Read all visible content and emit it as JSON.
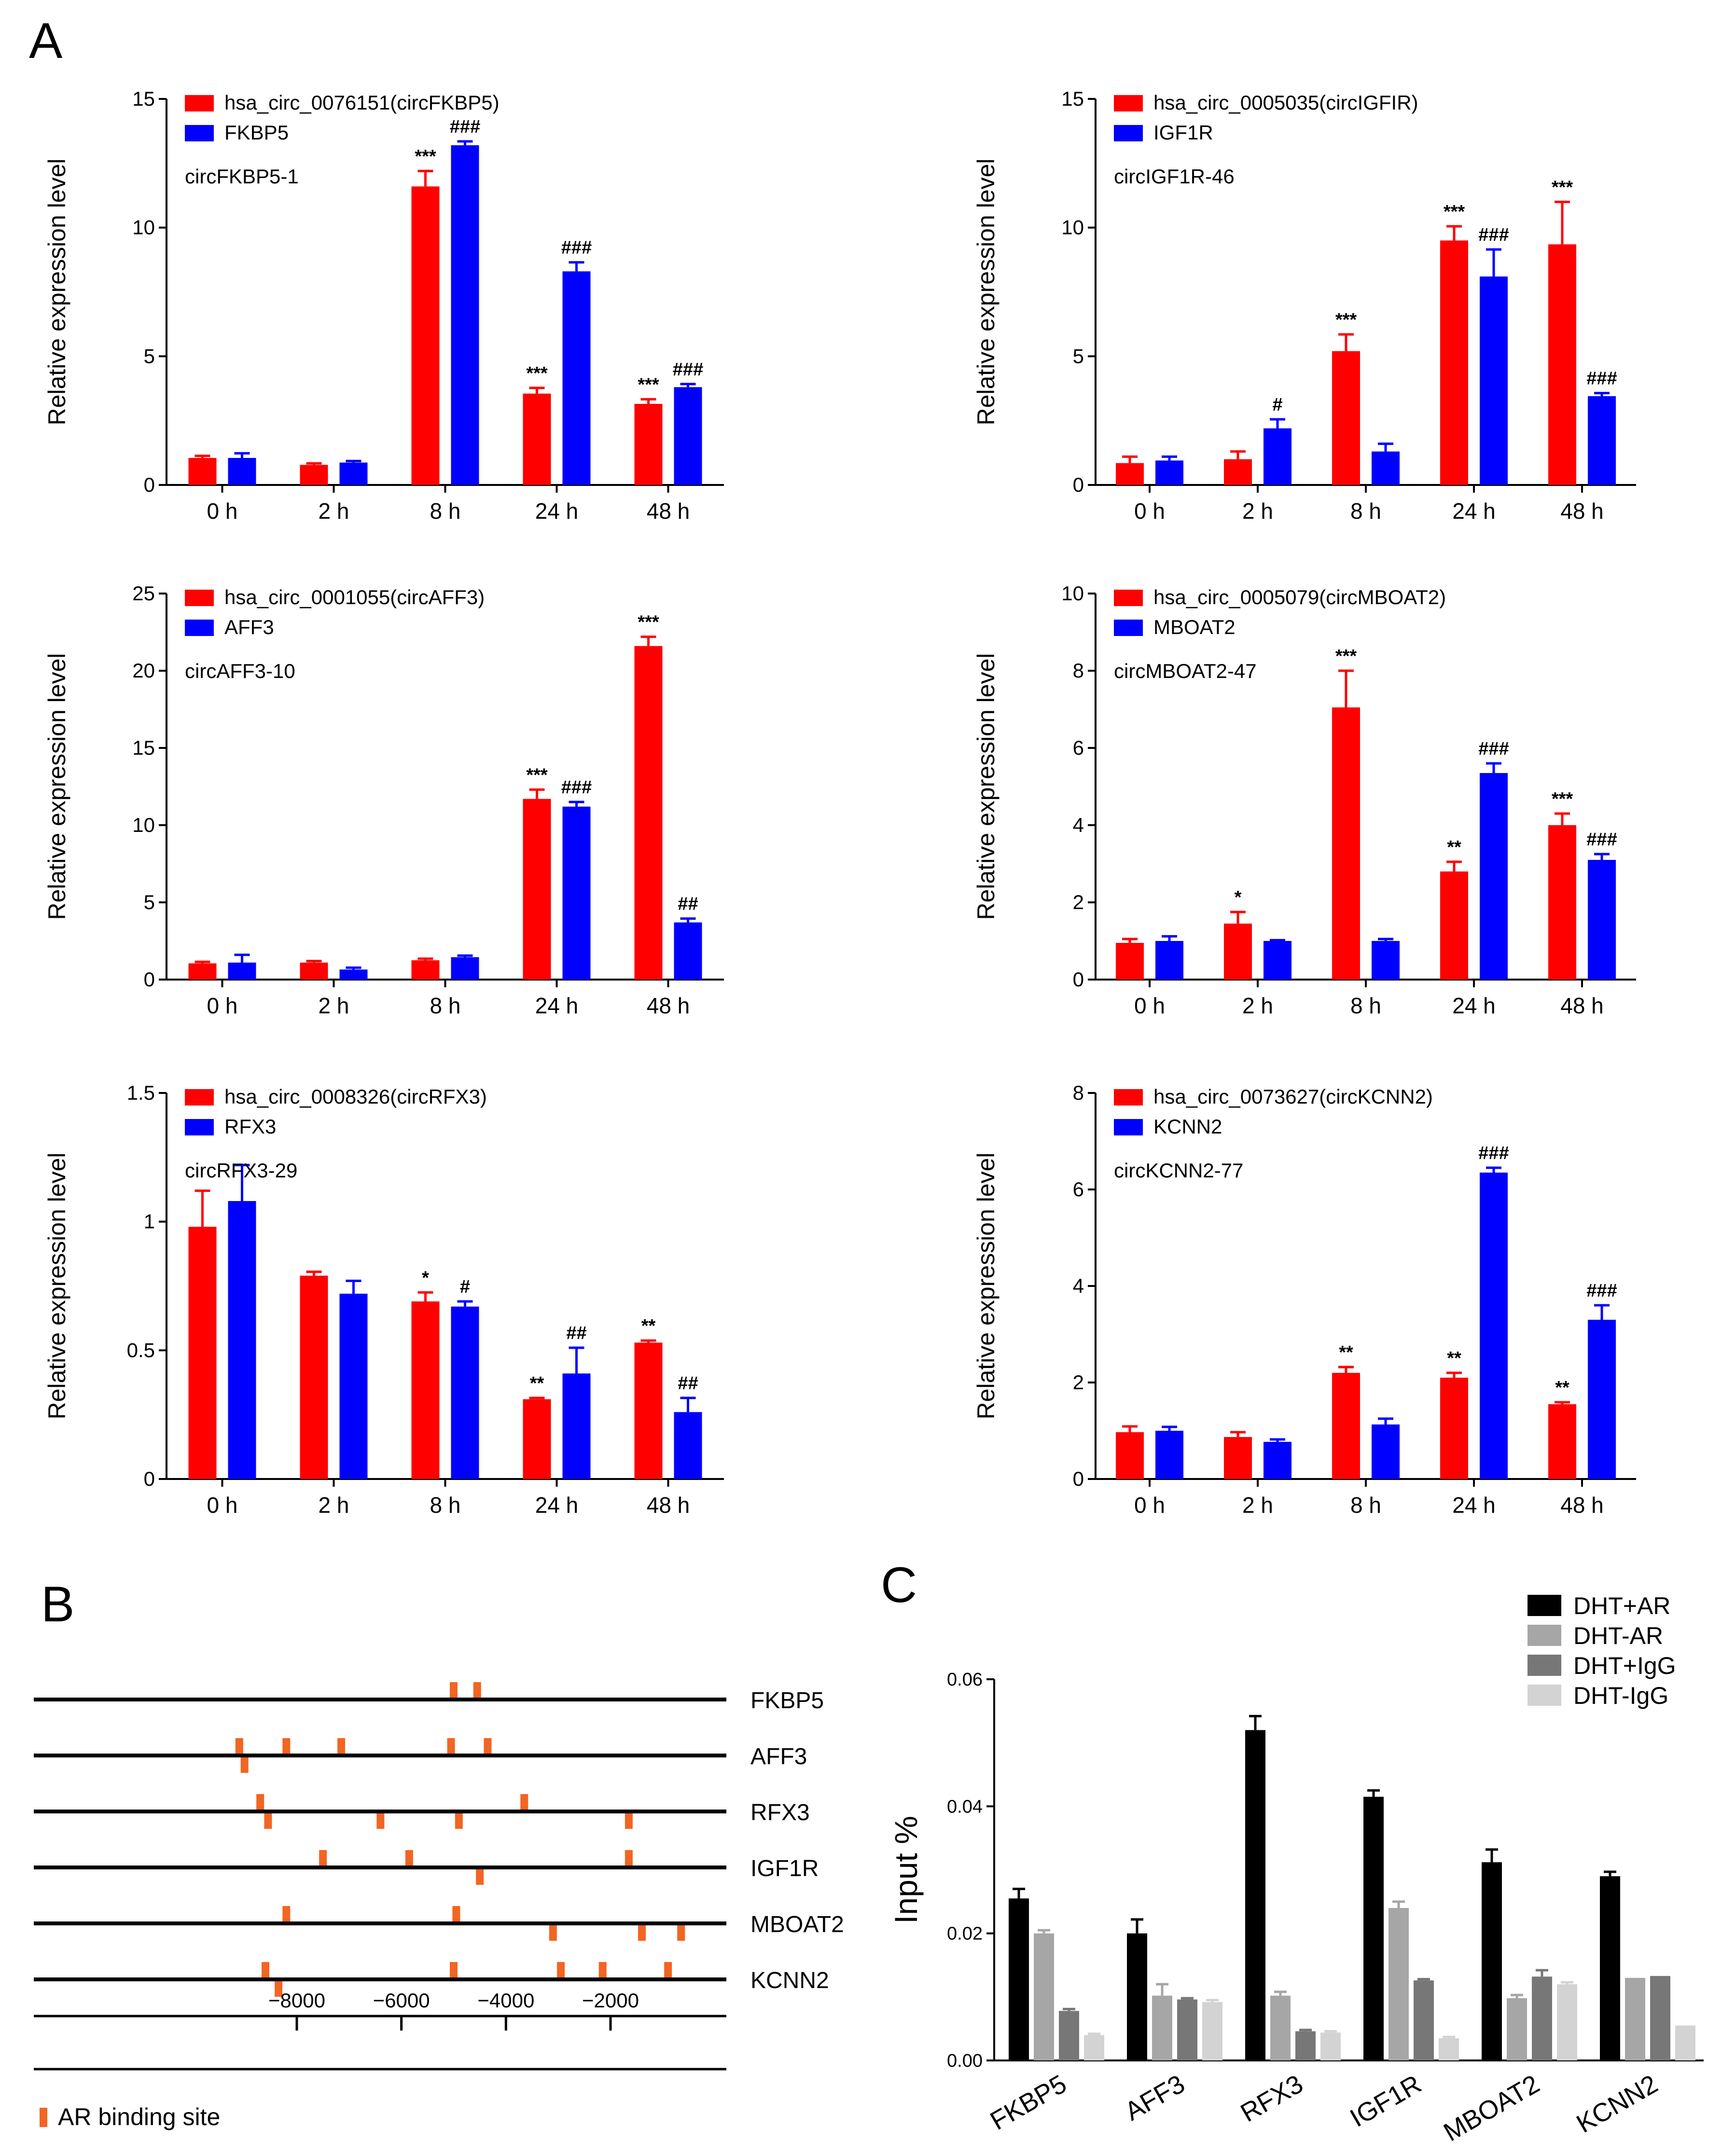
{
  "panel_labels": {
    "a": "A",
    "b": "B",
    "c": "C"
  },
  "colors": {
    "circ": "#ff0000",
    "host": "#0000ff",
    "site": "#f26522",
    "dht_ar": "#000000",
    "dht_minus_ar": "#a6a6a6",
    "dht_igg": "#777777",
    "dht_minus_igg": "#d3d3d3"
  },
  "chart_data": [
    {
      "type": "bar",
      "panel": "A",
      "id": "fkbp5",
      "ylabel": "Relative expression level",
      "categories": [
        "0 h",
        "2 h",
        "8 h",
        "24 h",
        "48 h"
      ],
      "ylim": [
        0,
        15
      ],
      "yticks": [
        0,
        5,
        10,
        15
      ],
      "annotation": "circFKBP5-1",
      "series": [
        {
          "name": "hsa_circ_0076151(circFKBP5)",
          "values": [
            1.05,
            0.78,
            11.6,
            3.55,
            3.15
          ],
          "errors": [
            0.08,
            0.06,
            0.6,
            0.22,
            0.18
          ],
          "marks": [
            "",
            "",
            "***",
            "***",
            "***"
          ]
        },
        {
          "name": "FKBP5",
          "values": [
            1.05,
            0.87,
            13.2,
            8.3,
            3.8
          ],
          "errors": [
            0.18,
            0.06,
            0.15,
            0.35,
            0.12
          ],
          "marks": [
            "",
            "",
            "###",
            "###",
            "###"
          ]
        }
      ]
    },
    {
      "type": "bar",
      "panel": "A",
      "id": "igf1r",
      "ylabel": "Relative expression level",
      "categories": [
        "0 h",
        "2 h",
        "8 h",
        "24 h",
        "48 h"
      ],
      "ylim": [
        0,
        15
      ],
      "yticks": [
        0,
        5,
        10,
        15
      ],
      "annotation": "circIGF1R-46",
      "series": [
        {
          "name": "hsa_circ_0005035(circIGFIR)",
          "values": [
            0.85,
            1.0,
            5.2,
            9.5,
            9.35
          ],
          "errors": [
            0.25,
            0.3,
            0.65,
            0.55,
            1.65
          ],
          "marks": [
            "",
            "",
            "***",
            "***",
            "***"
          ]
        },
        {
          "name": "IGF1R",
          "values": [
            0.95,
            2.2,
            1.3,
            8.1,
            3.45
          ],
          "errors": [
            0.15,
            0.35,
            0.3,
            1.05,
            0.12
          ],
          "marks": [
            "",
            "#",
            "",
            "###",
            "###"
          ]
        }
      ]
    },
    {
      "type": "bar",
      "panel": "A",
      "id": "aff3",
      "ylabel": "Relative expression level",
      "categories": [
        "0 h",
        "2 h",
        "8 h",
        "24 h",
        "48 h"
      ],
      "ylim": [
        0,
        25
      ],
      "yticks": [
        0,
        5,
        10,
        15,
        20,
        25
      ],
      "annotation": "circAFF3-10",
      "series": [
        {
          "name": "hsa_circ_0001055(circAFF3)",
          "values": [
            1.05,
            1.1,
            1.25,
            11.7,
            21.6
          ],
          "errors": [
            0.1,
            0.1,
            0.1,
            0.6,
            0.6
          ],
          "marks": [
            "",
            "",
            "",
            "***",
            "***"
          ]
        },
        {
          "name": "AFF3",
          "values": [
            1.1,
            0.65,
            1.45,
            11.2,
            3.7
          ],
          "errors": [
            0.5,
            0.12,
            0.1,
            0.3,
            0.25
          ],
          "marks": [
            "",
            "",
            "",
            "###",
            "##"
          ]
        }
      ]
    },
    {
      "type": "bar",
      "panel": "A",
      "id": "mboat2",
      "ylabel": "Relative expression level",
      "categories": [
        "0 h",
        "2 h",
        "8 h",
        "24 h",
        "48 h"
      ],
      "ylim": [
        0,
        10
      ],
      "yticks": [
        0,
        2,
        4,
        6,
        8,
        10
      ],
      "annotation": "circMBOAT2-47",
      "series": [
        {
          "name": "hsa_circ_0005079(circMBOAT2)",
          "values": [
            0.95,
            1.45,
            7.05,
            2.8,
            4.0
          ],
          "errors": [
            0.1,
            0.3,
            0.95,
            0.25,
            0.3
          ],
          "marks": [
            "",
            "*",
            "***",
            "**",
            "***"
          ]
        },
        {
          "name": "MBOAT2",
          "values": [
            1.0,
            1.0,
            1.0,
            5.35,
            3.1
          ],
          "errors": [
            0.12,
            0.02,
            0.05,
            0.25,
            0.15
          ],
          "marks": [
            "",
            "",
            "",
            "###",
            "###"
          ]
        }
      ]
    },
    {
      "type": "bar",
      "panel": "A",
      "id": "rfx3",
      "ylabel": "Relative expression level",
      "categories": [
        "0 h",
        "2 h",
        "8 h",
        "24 h",
        "48 h"
      ],
      "ylim": [
        0,
        1.5
      ],
      "yticks": [
        0.0,
        0.5,
        1.0,
        1.5
      ],
      "annotation": "circRFX3-29",
      "series": [
        {
          "name": "hsa_circ_0008326(circRFX3)",
          "values": [
            0.98,
            0.79,
            0.69,
            0.31,
            0.53
          ],
          "errors": [
            0.14,
            0.015,
            0.035,
            0.005,
            0.008
          ],
          "marks": [
            "",
            "",
            "*",
            "**",
            "**"
          ]
        },
        {
          "name": "RFX3",
          "values": [
            1.08,
            0.72,
            0.67,
            0.41,
            0.26
          ],
          "errors": [
            0.14,
            0.05,
            0.02,
            0.1,
            0.055
          ],
          "marks": [
            "",
            "",
            "#",
            "##",
            "##"
          ]
        }
      ]
    },
    {
      "type": "bar",
      "panel": "A",
      "id": "kcnn2",
      "ylabel": "Relative expression level",
      "categories": [
        "0 h",
        "2 h",
        "8 h",
        "24 h",
        "48 h"
      ],
      "ylim": [
        0,
        8
      ],
      "yticks": [
        0,
        2,
        4,
        6,
        8
      ],
      "annotation": "circKCNN2-77",
      "series": [
        {
          "name": "hsa_circ_0073627(circKCNN2)",
          "values": [
            0.97,
            0.87,
            2.2,
            2.1,
            1.55
          ],
          "errors": [
            0.12,
            0.1,
            0.12,
            0.1,
            0.04
          ],
          "marks": [
            "",
            "",
            "**",
            "**",
            "**"
          ]
        },
        {
          "name": "KCNN2",
          "values": [
            1.0,
            0.77,
            1.13,
            6.35,
            3.3
          ],
          "errors": [
            0.08,
            0.05,
            0.12,
            0.1,
            0.3
          ],
          "marks": [
            "",
            "",
            "",
            "###",
            "###"
          ]
        }
      ]
    },
    {
      "type": "bar",
      "panel": "C",
      "id": "chip",
      "ylabel": "Input %",
      "categories": [
        "FKBP5",
        "AFF3",
        "RFX3",
        "IGF1R",
        "MBOAT2",
        "KCNN2"
      ],
      "ylim": [
        0,
        0.06
      ],
      "yticks": [
        "0.00",
        "0.02",
        "0.04",
        "0.06"
      ],
      "series": [
        {
          "name": "DHT+AR",
          "values": [
            0.0255,
            0.02,
            0.052,
            0.0415,
            0.0312,
            0.029
          ],
          "errors": [
            0.0015,
            0.0022,
            0.0022,
            0.001,
            0.002,
            0.0007
          ]
        },
        {
          "name": "DHT-AR",
          "values": [
            0.02,
            0.0102,
            0.0102,
            0.024,
            0.0098,
            0.013
          ],
          "errors": [
            0.0005,
            0.0018,
            0.0006,
            0.001,
            0.0005,
            0.0
          ]
        },
        {
          "name": "DHT+IgG",
          "values": [
            0.0078,
            0.0096,
            0.0046,
            0.0126,
            0.0132,
            0.0133
          ],
          "errors": [
            0.0003,
            0.0002,
            0.0002,
            0.0002,
            0.001,
            0.0
          ]
        },
        {
          "name": "DHT-IgG",
          "values": [
            0.004,
            0.0092,
            0.0044,
            0.0035,
            0.012,
            0.0055
          ],
          "errors": [
            0.0002,
            0.0003,
            0.0002,
            0.0002,
            0.0003,
            0.0
          ]
        }
      ]
    }
  ],
  "promoter": {
    "genes": [
      {
        "name": "FKBP5",
        "sites": [
          {
            "pos": -5000,
            "side": "up"
          },
          {
            "pos": -4550,
            "side": "up"
          }
        ]
      },
      {
        "name": "AFF3",
        "sites": [
          {
            "pos": -9100,
            "side": "up"
          },
          {
            "pos": -9000,
            "side": "down"
          },
          {
            "pos": -8200,
            "side": "up"
          },
          {
            "pos": -7150,
            "side": "up"
          },
          {
            "pos": -5050,
            "side": "up"
          },
          {
            "pos": -4350,
            "side": "up"
          }
        ]
      },
      {
        "name": "RFX3",
        "sites": [
          {
            "pos": -8700,
            "side": "up"
          },
          {
            "pos": -8550,
            "side": "down"
          },
          {
            "pos": -6400,
            "side": "down"
          },
          {
            "pos": -4900,
            "side": "down"
          },
          {
            "pos": -3650,
            "side": "up"
          },
          {
            "pos": -1650,
            "side": "down"
          }
        ]
      },
      {
        "name": "IGF1R",
        "sites": [
          {
            "pos": -7500,
            "side": "up"
          },
          {
            "pos": -5850,
            "side": "up"
          },
          {
            "pos": -4500,
            "side": "down"
          },
          {
            "pos": -1650,
            "side": "up"
          }
        ]
      },
      {
        "name": "MBOAT2",
        "sites": [
          {
            "pos": -8200,
            "side": "up"
          },
          {
            "pos": -4950,
            "side": "up"
          },
          {
            "pos": -3100,
            "side": "down"
          },
          {
            "pos": -1400,
            "side": "down"
          },
          {
            "pos": -650,
            "side": "down"
          }
        ]
      },
      {
        "name": "KCNN2",
        "sites": [
          {
            "pos": -8600,
            "side": "up"
          },
          {
            "pos": -8350,
            "side": "down"
          },
          {
            "pos": -5000,
            "side": "up"
          },
          {
            "pos": -2950,
            "side": "up"
          },
          {
            "pos": -2150,
            "side": "up"
          },
          {
            "pos": -900,
            "side": "up"
          }
        ]
      }
    ],
    "axis_ticks": [
      "−8000",
      "−6000",
      "−4000",
      "−2000"
    ],
    "axis_tick_values": [
      -8000,
      -6000,
      -4000,
      -2000
    ],
    "legend_label": "AR binding site"
  }
}
